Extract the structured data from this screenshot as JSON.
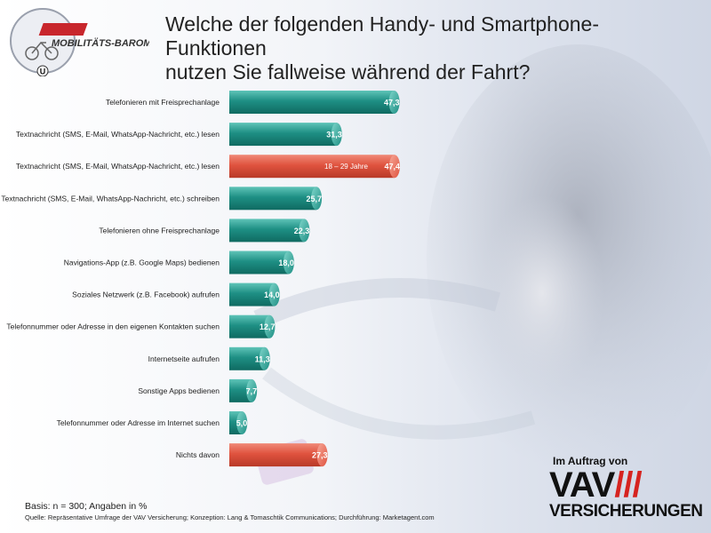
{
  "logo": {
    "text": "MOBILITÄTS-BAROMETER.AT",
    "letter": "U",
    "icon": "bicycle-car-icon"
  },
  "title": {
    "line1": "Welche der folgenden Handy- und Smartphone-Funktionen",
    "line2": "nutzen Sie fallweise während der Fahrt?"
  },
  "colors": {
    "teal": "#1e8f84",
    "teal_light": "#5fc4b8",
    "red": "#e0533f",
    "red_light": "#f08a78"
  },
  "chart_data": {
    "type": "bar",
    "orientation": "horizontal",
    "unit": "%",
    "xlim": [
      0,
      50
    ],
    "grid": false,
    "bars": [
      {
        "label": "Telefonieren mit Freisprechanlage",
        "value": 47.3,
        "display": "47,3",
        "color": "teal"
      },
      {
        "label": "Textnachricht (SMS, E-Mail, WhatsApp-Nachricht, etc.) lesen",
        "value": 31.3,
        "display": "31,3",
        "color": "teal"
      },
      {
        "label": "Textnachricht (SMS, E-Mail, WhatsApp-Nachricht, etc.) lesen",
        "value": 47.4,
        "display": "47,4",
        "color": "red",
        "annotation": "18 – 29 Jahre"
      },
      {
        "label": "Textnachricht (SMS, E-Mail, WhatsApp-Nachricht, etc.) schreiben",
        "value": 25.7,
        "display": "25,7",
        "color": "teal"
      },
      {
        "label": "Telefonieren ohne Freisprechanlage",
        "value": 22.3,
        "display": "22,3",
        "color": "teal"
      },
      {
        "label": "Navigations-App (z.B. Google Maps) bedienen",
        "value": 18.0,
        "display": "18,0",
        "color": "teal"
      },
      {
        "label": "Soziales Netzwerk (z.B. Facebook) aufrufen",
        "value": 14.0,
        "display": "14,0",
        "color": "teal"
      },
      {
        "label": "Telefonnummer oder Adresse in den eigenen Kontakten suchen",
        "value": 12.7,
        "display": "12,7",
        "color": "teal"
      },
      {
        "label": "Internetseite aufrufen",
        "value": 11.3,
        "display": "11,3",
        "color": "teal"
      },
      {
        "label": "Sonstige Apps bedienen",
        "value": 7.7,
        "display": "7,7",
        "color": "teal"
      },
      {
        "label": "Telefonnummer oder Adresse im Internet suchen",
        "value": 5.0,
        "display": "5,0",
        "color": "teal"
      },
      {
        "label": "Nichts davon",
        "value": 27.3,
        "display": "27,3",
        "color": "red"
      }
    ]
  },
  "footer": {
    "basis": "Basis: n = 300; Angaben in %",
    "source": "Quelle: Repräsentative  Umfrage der VAV Versicherung; Konzeption: Lang & Tomaschtik Communications; Durchführung: Marketagent.com"
  },
  "sponsor": {
    "auftrag": "Im Auftrag von",
    "brand": "VAV",
    "bars": "///",
    "sub": "VERSICHERUNGEN"
  }
}
